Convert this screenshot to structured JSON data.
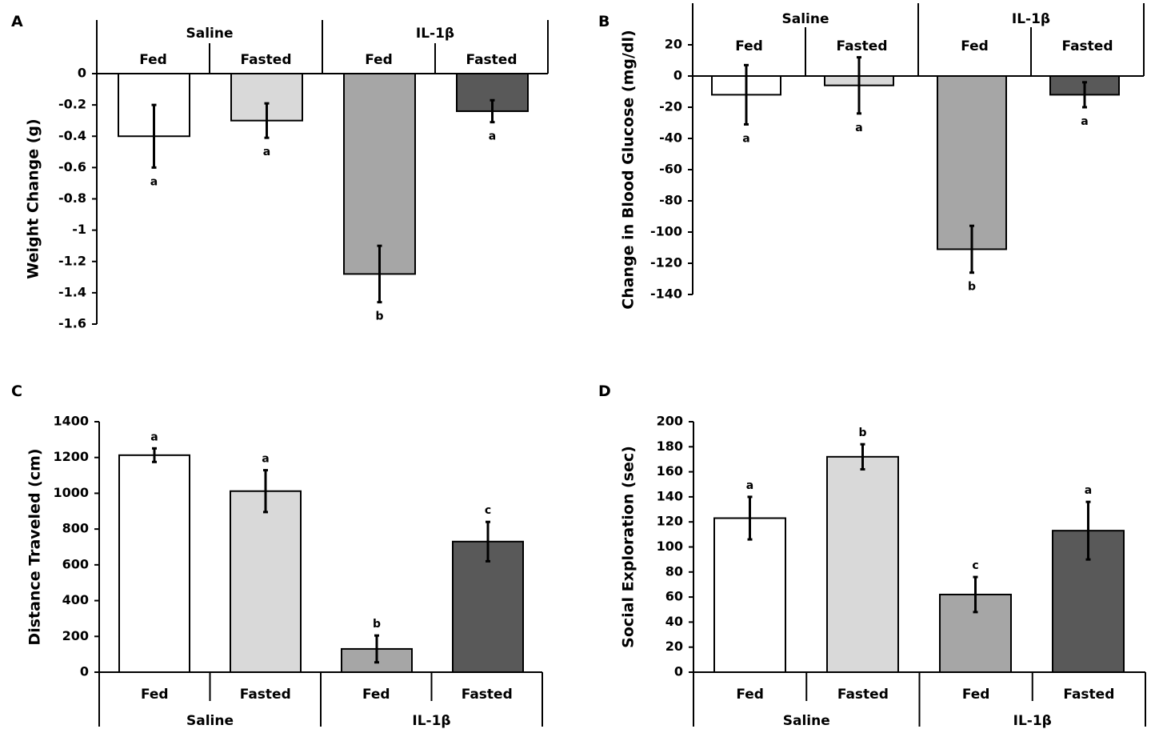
{
  "chart_data": [
    {
      "panel": "A",
      "type": "bar",
      "ylabel": "Weight Change (g)",
      "ylim": [
        -1.6,
        0
      ],
      "yticks": [
        0,
        -0.2,
        -0.4,
        -0.6,
        -0.8,
        -1,
        -1.2,
        -1.4,
        -1.6
      ],
      "groups": [
        "Saline",
        "IL-1β"
      ],
      "categories": [
        "Fed",
        "Fasted",
        "Fed",
        "Fasted"
      ],
      "values": [
        -0.4,
        -0.3,
        -1.28,
        -0.24
      ],
      "errors": [
        0.2,
        0.11,
        0.18,
        0.07
      ],
      "significance": [
        "a",
        "a",
        "b",
        "a"
      ],
      "colors": [
        "#ffffff",
        "#d9d9d9",
        "#a6a6a6",
        "#595959"
      ]
    },
    {
      "panel": "B",
      "type": "bar",
      "ylabel": "Change in Blood Glucose (mg/dl)",
      "ylim": [
        -140,
        20
      ],
      "yticks": [
        20,
        0,
        -20,
        -40,
        -60,
        -80,
        -100,
        -120,
        -140
      ],
      "groups": [
        "Saline",
        "IL-1β"
      ],
      "categories": [
        "Fed",
        "Fasted",
        "Fed",
        "Fasted"
      ],
      "values": [
        -12,
        -6,
        -111,
        -12
      ],
      "errors": [
        19,
        18,
        15,
        8
      ],
      "significance": [
        "a",
        "a",
        "b",
        "a"
      ],
      "colors": [
        "#ffffff",
        "#d9d9d9",
        "#a6a6a6",
        "#595959"
      ]
    },
    {
      "panel": "C",
      "type": "bar",
      "ylabel": "Distance Traveled (cm)",
      "ylim": [
        0,
        1400
      ],
      "yticks": [
        0,
        200,
        400,
        600,
        800,
        1000,
        1200,
        1400
      ],
      "groups": [
        "Saline",
        "IL-1β"
      ],
      "categories": [
        "Fed",
        "Fasted",
        "Fed",
        "Fasted"
      ],
      "values": [
        1213,
        1012,
        130,
        730
      ],
      "errors": [
        38,
        117,
        75,
        110
      ],
      "significance": [
        "a",
        "a",
        "b",
        "c"
      ],
      "colors": [
        "#ffffff",
        "#d9d9d9",
        "#a6a6a6",
        "#595959"
      ]
    },
    {
      "panel": "D",
      "type": "bar",
      "ylabel": "Social Exploration (sec)",
      "ylim": [
        0,
        200
      ],
      "yticks": [
        0,
        20,
        40,
        60,
        80,
        100,
        120,
        140,
        160,
        180,
        200
      ],
      "groups": [
        "Saline",
        "IL-1β"
      ],
      "categories": [
        "Fed",
        "Fasted",
        "Fed",
        "Fasted"
      ],
      "values": [
        123,
        172,
        62,
        113
      ],
      "errors": [
        17,
        10,
        14,
        23
      ],
      "significance": [
        "a",
        "b",
        "c",
        "a"
      ],
      "colors": [
        "#ffffff",
        "#d9d9d9",
        "#a6a6a6",
        "#595959"
      ]
    }
  ]
}
